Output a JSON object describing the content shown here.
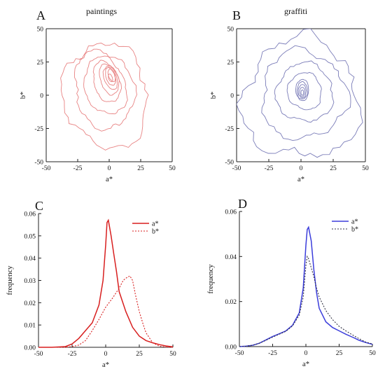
{
  "figure": {
    "panels": [
      {
        "letter": "A",
        "title": "paintings"
      },
      {
        "letter": "B",
        "title": "graffiti"
      },
      {
        "letter": "C",
        "title": ""
      },
      {
        "letter": "D",
        "title": ""
      }
    ]
  },
  "colors": {
    "red": "#d81f1f",
    "red_contour": "#e88383",
    "blue": "#3b3ddb",
    "blue_contour": "#7a7cb8",
    "axis": "#222222",
    "dotted_dark": "#333344"
  },
  "chart_data": [
    {
      "panel": "A",
      "type": "contour",
      "title": "paintings",
      "xlabel": "a*",
      "ylabel": "b*",
      "xlim": [
        -50,
        50
      ],
      "ylim": [
        -50,
        50
      ],
      "xticks": [
        -50,
        -25,
        0,
        25,
        50
      ],
      "yticks": [
        -50,
        -25,
        0,
        25,
        50
      ],
      "center": [
        1,
        13
      ],
      "contour_levels": [
        {
          "rx": 33,
          "ry": 40,
          "cx": -3,
          "cy": 0,
          "rot": 15
        },
        {
          "rx": 23,
          "ry": 30,
          "cx": -4,
          "cy": 4,
          "rot": 15
        },
        {
          "rx": 16,
          "ry": 22,
          "cx": -3,
          "cy": 7,
          "rot": 20
        },
        {
          "rx": 10,
          "ry": 16,
          "cx": -2,
          "cy": 10,
          "rot": 20
        },
        {
          "rx": 7,
          "ry": 12,
          "cx": 0,
          "cy": 12,
          "rot": 20
        },
        {
          "rx": 5,
          "ry": 9,
          "cx": 1,
          "cy": 13,
          "rot": 20
        },
        {
          "rx": 3.5,
          "ry": 7,
          "cx": 1,
          "cy": 14,
          "rot": 20
        },
        {
          "rx": 2.5,
          "ry": 5,
          "cx": 2,
          "cy": 15,
          "rot": 20
        },
        {
          "rx": 1.5,
          "ry": 3,
          "cx": 1,
          "cy": 13,
          "rot": 20
        }
      ]
    },
    {
      "panel": "B",
      "type": "contour",
      "title": "graffiti",
      "xlabel": "a*",
      "ylabel": "b*",
      "xlim": [
        -50,
        50
      ],
      "ylim": [
        -50,
        50
      ],
      "xticks": [
        -50,
        -25,
        0,
        25,
        50
      ],
      "yticks": [
        -50,
        -25,
        0,
        25,
        50
      ],
      "center": [
        1,
        3
      ],
      "contour_levels": [
        {
          "rx": 45,
          "ry": 45,
          "cx": 0,
          "cy": -3,
          "rot": 40
        },
        {
          "rx": 33,
          "ry": 33,
          "cx": 2,
          "cy": 0,
          "rot": 40
        },
        {
          "rx": 22,
          "ry": 22,
          "cx": 3,
          "cy": 2,
          "rot": 30
        },
        {
          "rx": 13,
          "ry": 14,
          "cx": 3,
          "cy": 3,
          "rot": 20
        },
        {
          "rx": 5,
          "ry": 8,
          "cx": 1,
          "cy": 4,
          "rot": 0
        },
        {
          "rx": 4,
          "ry": 6.5,
          "cx": 1,
          "cy": 3.5,
          "rot": 0
        },
        {
          "rx": 3,
          "ry": 5,
          "cx": 1,
          "cy": 3,
          "rot": 0
        },
        {
          "rx": 2,
          "ry": 3.5,
          "cx": 1,
          "cy": 2.5,
          "rot": 0
        },
        {
          "rx": 1,
          "ry": 2,
          "cx": 1,
          "cy": 2,
          "rot": 0
        }
      ]
    },
    {
      "panel": "C",
      "type": "line",
      "xlabel": "a*",
      "ylabel": "frequency",
      "xlim": [
        -50,
        50
      ],
      "ylim": [
        0,
        0.06
      ],
      "xticks": [
        -50,
        -25,
        0,
        25,
        50
      ],
      "yticks": [
        0.0,
        0.01,
        0.02,
        0.03,
        0.04,
        0.05,
        0.06
      ],
      "ytick_labels": [
        "0.00",
        "0.01",
        "0.02",
        "0.03",
        "0.04",
        "0.05",
        "0.06"
      ],
      "legend_position": "top-right",
      "series": [
        {
          "name": "a*",
          "style": "solid",
          "x": [
            -50,
            -40,
            -30,
            -25,
            -20,
            -15,
            -10,
            -5,
            -2,
            0,
            1,
            2,
            4,
            6,
            8,
            10,
            15,
            20,
            25,
            30,
            35,
            40,
            45,
            50
          ],
          "y": [
            0.0,
            0.0,
            0.0003,
            0.0015,
            0.004,
            0.0075,
            0.011,
            0.019,
            0.03,
            0.046,
            0.056,
            0.057,
            0.05,
            0.042,
            0.034,
            0.025,
            0.016,
            0.009,
            0.005,
            0.003,
            0.002,
            0.0012,
            0.0006,
            0.0002
          ]
        },
        {
          "name": "b*",
          "style": "dotted",
          "x": [
            -50,
            -30,
            -25,
            -20,
            -15,
            -10,
            -5,
            0,
            5,
            10,
            13,
            15,
            18,
            20,
            22,
            25,
            28,
            30,
            35,
            40,
            45,
            50
          ],
          "y": [
            0.0,
            0.0,
            0.0003,
            0.001,
            0.003,
            0.0075,
            0.0125,
            0.018,
            0.022,
            0.0265,
            0.03,
            0.031,
            0.032,
            0.03,
            0.024,
            0.016,
            0.01,
            0.0065,
            0.002,
            0.0005,
            0.0001,
            0.0
          ]
        }
      ]
    },
    {
      "panel": "D",
      "type": "line",
      "xlabel": "a*",
      "ylabel": "frequency",
      "xlim": [
        -50,
        50
      ],
      "ylim": [
        0,
        0.06
      ],
      "xticks": [
        -50,
        -25,
        0,
        25,
        50
      ],
      "yticks": [
        0.0,
        0.02,
        0.04,
        0.06
      ],
      "ytick_labels": [
        "0.00",
        "0.02",
        "0.04",
        "0.06"
      ],
      "legend_position": "top-right",
      "series": [
        {
          "name": "a*",
          "style": "solid",
          "x": [
            -50,
            -45,
            -40,
            -35,
            -30,
            -25,
            -20,
            -15,
            -10,
            -5,
            -2,
            0,
            1,
            2,
            4,
            6,
            8,
            10,
            15,
            20,
            25,
            30,
            35,
            40,
            45,
            50
          ],
          "y": [
            0.0,
            0.0002,
            0.0006,
            0.0015,
            0.003,
            0.0045,
            0.0057,
            0.007,
            0.0095,
            0.015,
            0.026,
            0.045,
            0.052,
            0.053,
            0.047,
            0.034,
            0.024,
            0.017,
            0.011,
            0.0085,
            0.007,
            0.0055,
            0.0042,
            0.0028,
            0.0018,
            0.001
          ]
        },
        {
          "name": "b*",
          "style": "dotted",
          "x": [
            -50,
            -45,
            -40,
            -35,
            -30,
            -25,
            -20,
            -15,
            -10,
            -5,
            -2,
            0,
            1,
            2,
            4,
            6,
            8,
            10,
            15,
            20,
            25,
            30,
            35,
            40,
            45,
            50
          ],
          "y": [
            0.0,
            0.0002,
            0.0006,
            0.0015,
            0.0028,
            0.0042,
            0.0055,
            0.0068,
            0.0092,
            0.014,
            0.022,
            0.036,
            0.04,
            0.039,
            0.035,
            0.031,
            0.026,
            0.022,
            0.016,
            0.012,
            0.009,
            0.007,
            0.0052,
            0.0035,
            0.002,
            0.0012
          ]
        }
      ]
    }
  ]
}
